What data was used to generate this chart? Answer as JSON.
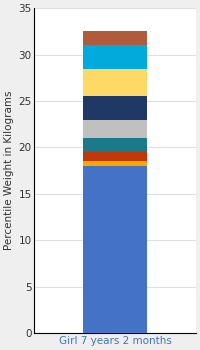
{
  "category": "Girl 7 years 2 months",
  "segments": [
    {
      "value": 18.0,
      "color": "#4472C4"
    },
    {
      "value": 0.5,
      "color": "#FFA500"
    },
    {
      "value": 1.0,
      "color": "#C0390B"
    },
    {
      "value": 1.5,
      "color": "#1A7A8C"
    },
    {
      "value": 2.0,
      "color": "#C0C0C0"
    },
    {
      "value": 2.5,
      "color": "#1F3864"
    },
    {
      "value": 3.0,
      "color": "#FFD966"
    },
    {
      "value": 2.5,
      "color": "#00AADD"
    },
    {
      "value": 1.5,
      "color": "#B05B3B"
    }
  ],
  "ylim": [
    0,
    35
  ],
  "yticks": [
    0,
    5,
    10,
    15,
    20,
    25,
    30,
    35
  ],
  "ylabel": "Percentile Weight in Kilograms",
  "xlabel_label": "Girl 7 years 2 months",
  "xlabel_color": "#4472C4",
  "plot_bg_color": "#FFFFFF",
  "fig_bg_color": "#EFEFEF",
  "grid_color": "#E0E0E0",
  "bar_width": 0.4,
  "label_fontsize": 7.5,
  "tick_fontsize": 7.5,
  "spine_color": "#000000"
}
